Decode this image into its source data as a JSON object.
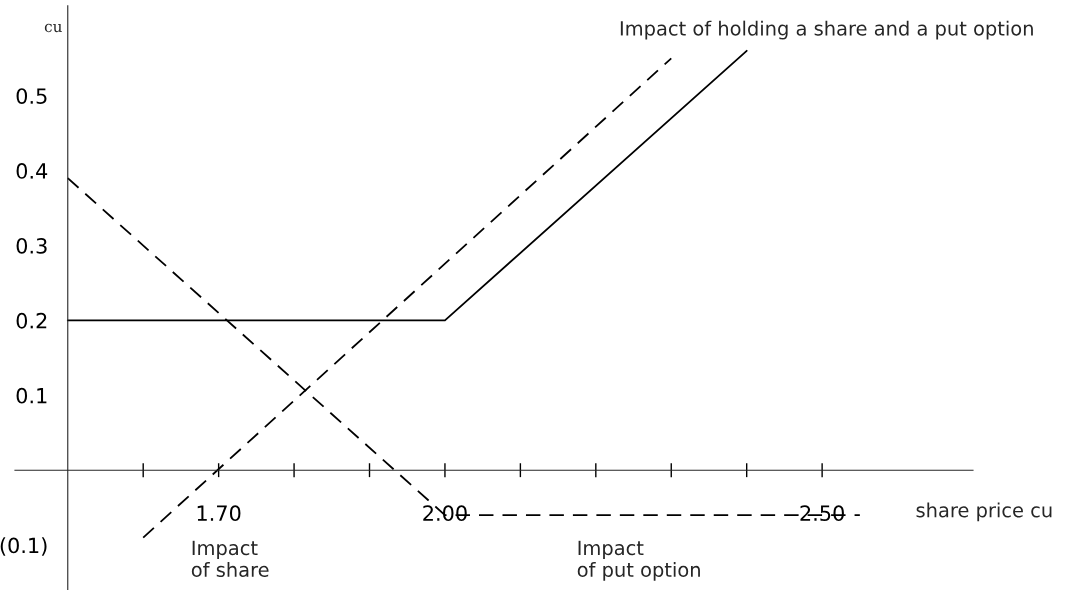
{
  "chart_data": {
    "type": "line",
    "xlabel": "share price cu",
    "ylabel": "cu",
    "series": [
      {
        "x": [
          1.5,
          2.0,
          2.4
        ],
        "values": [
          0.2,
          0.2,
          0.56
        ],
        "color": "#000000",
        "line_style": "solid"
      },
      {
        "x": [
          1.6,
          2.3
        ],
        "values": [
          -0.09,
          0.55
        ],
        "color": "#000000",
        "line_style": "dashed"
      },
      {
        "x": [
          1.5,
          2.0,
          2.55
        ],
        "values": [
          0.39,
          -0.06,
          -0.06
        ],
        "color": "#000000",
        "line_style": "dashed"
      }
    ],
    "xlim": [
      1.43,
      2.7
    ],
    "ylim": [
      -0.16,
      0.62
    ],
    "xticks": [
      {
        "value": 1.6,
        "label": null
      },
      {
        "value": 1.7,
        "label": "1.70"
      },
      {
        "value": 1.8,
        "label": null
      },
      {
        "value": 1.9,
        "label": null
      },
      {
        "value": 2.0,
        "label": "2.00"
      },
      {
        "value": 2.1,
        "label": null
      },
      {
        "value": 2.2,
        "label": null
      },
      {
        "value": 2.3,
        "label": null
      },
      {
        "value": 2.4,
        "label": null
      },
      {
        "value": 2.5,
        "label": "2.50"
      }
    ],
    "yticks": [
      {
        "value": -0.1,
        "label": "(0.1)"
      },
      0.1,
      0.2,
      0.3,
      0.4,
      0.5
    ],
    "annotations": [
      "Impact of holding a share and a put option",
      "Impact\nof share",
      "Impact\nof put option"
    ],
    "grid": false,
    "legend": false,
    "marker": "none"
  }
}
